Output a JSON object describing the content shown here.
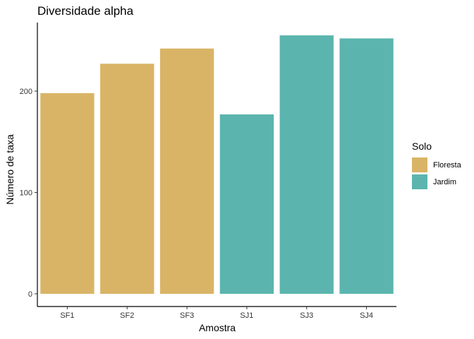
{
  "chart_data": {
    "type": "bar",
    "title": "Diversidade alpha",
    "xlabel": "Amostra",
    "ylabel": "Número de taxa",
    "categories": [
      "SF1",
      "SF2",
      "SF3",
      "SJ1",
      "SJ3",
      "SJ4"
    ],
    "values": [
      198,
      227,
      242,
      177,
      255,
      252
    ],
    "groups": [
      "Floresta",
      "Floresta",
      "Floresta",
      "Jardim",
      "Jardim",
      "Jardim"
    ],
    "ylim": [
      0,
      268
    ],
    "yticks": [
      0,
      100,
      200
    ],
    "grid": false,
    "legend": {
      "title": "Solo",
      "placement": "right",
      "entries": [
        {
          "label": "Floresta",
          "color": "#D9B466"
        },
        {
          "label": "Jardim",
          "color": "#5BB5AE"
        }
      ]
    }
  }
}
